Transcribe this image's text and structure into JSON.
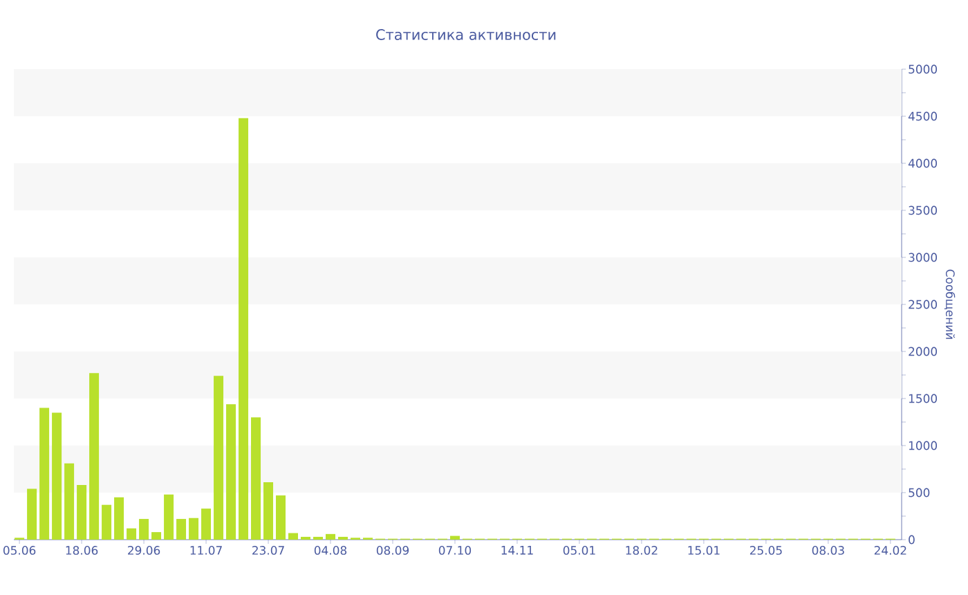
{
  "chart_data": {
    "type": "bar",
    "title": "Статистика активности",
    "ylabel": "Сообщений",
    "categories": [
      "05.06",
      null,
      null,
      null,
      null,
      "18.06",
      null,
      null,
      null,
      null,
      "29.06",
      null,
      null,
      null,
      null,
      "11.07",
      null,
      null,
      null,
      null,
      "23.07",
      null,
      null,
      null,
      null,
      "04.08",
      null,
      null,
      null,
      null,
      "08.09",
      null,
      null,
      null,
      null,
      "07.10",
      null,
      null,
      null,
      null,
      "14.11",
      null,
      null,
      null,
      null,
      "05.01",
      null,
      null,
      null,
      null,
      "18.02",
      null,
      null,
      null,
      null,
      "15.01",
      null,
      null,
      null,
      null,
      "25.05",
      null,
      null,
      null,
      null,
      "08.03",
      null,
      null,
      null,
      null,
      "24.02"
    ],
    "values": [
      20,
      540,
      1400,
      1350,
      810,
      580,
      1770,
      370,
      450,
      120,
      220,
      80,
      480,
      220,
      230,
      330,
      1740,
      1440,
      4480,
      1300,
      610,
      470,
      70,
      30,
      30,
      60,
      30,
      20,
      20,
      10,
      10,
      10,
      10,
      10,
      10,
      40,
      10,
      10,
      10,
      10,
      10,
      10,
      10,
      10,
      10,
      10,
      10,
      10,
      10,
      10,
      10,
      10,
      10,
      10,
      10,
      10,
      10,
      10,
      10,
      10,
      10,
      10,
      10,
      10,
      10,
      10,
      10,
      10,
      10,
      10,
      10
    ],
    "color": "#b8e02c",
    "ylim": [
      0,
      5000
    ],
    "yticks": [
      0,
      500,
      1000,
      1500,
      2000,
      2500,
      3000,
      3500,
      4000,
      4500,
      5000
    ],
    "bands": [
      {
        "axis": "y",
        "from": 500,
        "to": 1000,
        "color": "#f7f7f7"
      },
      {
        "axis": "y",
        "from": 1500,
        "to": 2000,
        "color": "#f7f7f7"
      },
      {
        "axis": "y",
        "from": 2500,
        "to": 3000,
        "color": "#f7f7f7"
      },
      {
        "axis": "y",
        "from": 3500,
        "to": 4000,
        "color": "#f7f7f7"
      },
      {
        "axis": "y",
        "from": 4500,
        "to": 5000,
        "color": "#f7f7f7"
      }
    ]
  }
}
